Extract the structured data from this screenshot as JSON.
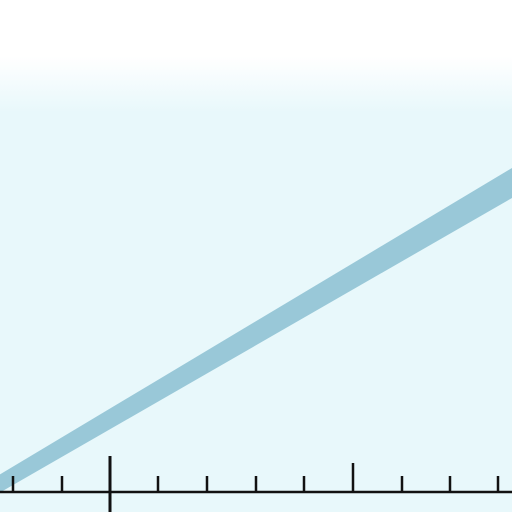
{
  "colors": {
    "background_top": "#ffffff",
    "background_fill": "#e8f8fb",
    "band": "#99c8d8",
    "axis": "#111111"
  },
  "icons": [
    "number-line-axis",
    "diagonal-band"
  ]
}
